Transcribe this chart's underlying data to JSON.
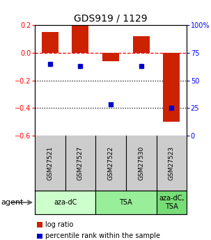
{
  "title": "GDS919 / 1129",
  "samples": [
    "GSM27521",
    "GSM27527",
    "GSM27522",
    "GSM27530",
    "GSM27523"
  ],
  "log_ratios": [
    0.15,
    0.195,
    -0.06,
    0.12,
    -0.5
  ],
  "percentile_ranks": [
    65,
    63,
    28,
    63,
    25
  ],
  "bar_color": "#cc2200",
  "dot_color": "#0000cc",
  "ylim_left": [
    -0.6,
    0.2
  ],
  "ylim_right": [
    0,
    100
  ],
  "yticks_left": [
    -0.6,
    -0.4,
    -0.2,
    0.0,
    0.2
  ],
  "yticks_right": [
    0,
    25,
    50,
    75,
    100
  ],
  "ytick_labels_right": [
    "0",
    "25",
    "50",
    "75",
    "100%"
  ],
  "hline_zero": 0.0,
  "hlines_dotted": [
    -0.2,
    -0.4
  ],
  "agent_groups": [
    {
      "label": "aza-dC",
      "color": "#ccffcc",
      "indices": [
        0,
        1
      ]
    },
    {
      "label": "TSA",
      "color": "#99ee99",
      "indices": [
        2,
        3
      ]
    },
    {
      "label": "aza-dC,\nTSA",
      "color": "#77dd77",
      "indices": [
        4
      ]
    }
  ],
  "sample_bg": "#cccccc",
  "agent_label": "agent",
  "legend_items": [
    {
      "color": "#cc2200",
      "label": "log ratio"
    },
    {
      "color": "#0000cc",
      "label": "percentile rank within the sample"
    }
  ],
  "bar_width": 0.55,
  "background_color": "#ffffff"
}
